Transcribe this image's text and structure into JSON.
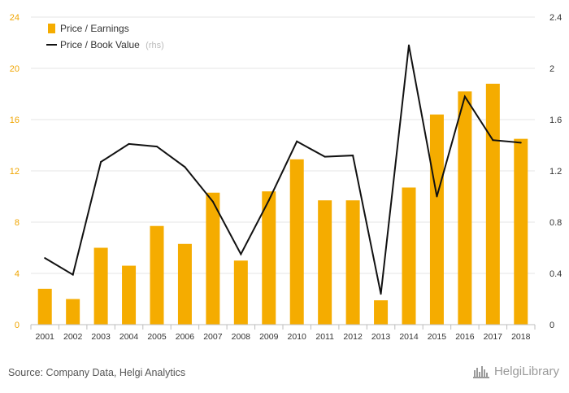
{
  "chart_data": {
    "type": "bar",
    "categories": [
      "2001",
      "2002",
      "2003",
      "2004",
      "2005",
      "2006",
      "2007",
      "2008",
      "2009",
      "2010",
      "2011",
      "2012",
      "2013",
      "2014",
      "2015",
      "2016",
      "2017",
      "2018"
    ],
    "series": [
      {
        "name": "Price / Earnings",
        "type": "bar",
        "axis": "left",
        "color": "#f5ac00",
        "values": [
          2.8,
          2.0,
          6.0,
          4.6,
          7.7,
          6.3,
          10.3,
          5.0,
          10.4,
          12.9,
          9.7,
          9.7,
          1.9,
          10.7,
          16.4,
          18.2,
          18.8,
          14.5
        ]
      },
      {
        "name": "Price / Book Value",
        "type": "line",
        "axis": "right",
        "color": "#111111",
        "values": [
          0.52,
          0.39,
          1.27,
          1.41,
          1.39,
          1.23,
          0.96,
          0.55,
          0.97,
          1.43,
          1.31,
          1.32,
          0.24,
          2.18,
          1.0,
          1.78,
          1.44,
          1.42
        ]
      }
    ],
    "y_left": {
      "ticks": [
        "0",
        "4",
        "8",
        "12",
        "16",
        "20",
        "24"
      ],
      "range": [
        0,
        24
      ]
    },
    "y_right": {
      "ticks": [
        "0",
        "0.4",
        "0.8",
        "1.2",
        "1.6",
        "2",
        "2.4"
      ],
      "range": [
        0,
        2.4
      ]
    },
    "grid": true,
    "legend": {
      "placement": "top-left",
      "items": [
        {
          "label": "Price / Earnings",
          "note": ""
        },
        {
          "label": "Price / Book Value",
          "note": "(rhs)"
        }
      ]
    }
  },
  "footer": {
    "source": "Source: Company Data, Helgi Analytics",
    "logo_text": "HelgiLibrary"
  },
  "colors": {
    "bar": "#f5ac00",
    "line": "#111111",
    "left_axis_text": "#f0a500",
    "grid": "#e6e6e6"
  }
}
